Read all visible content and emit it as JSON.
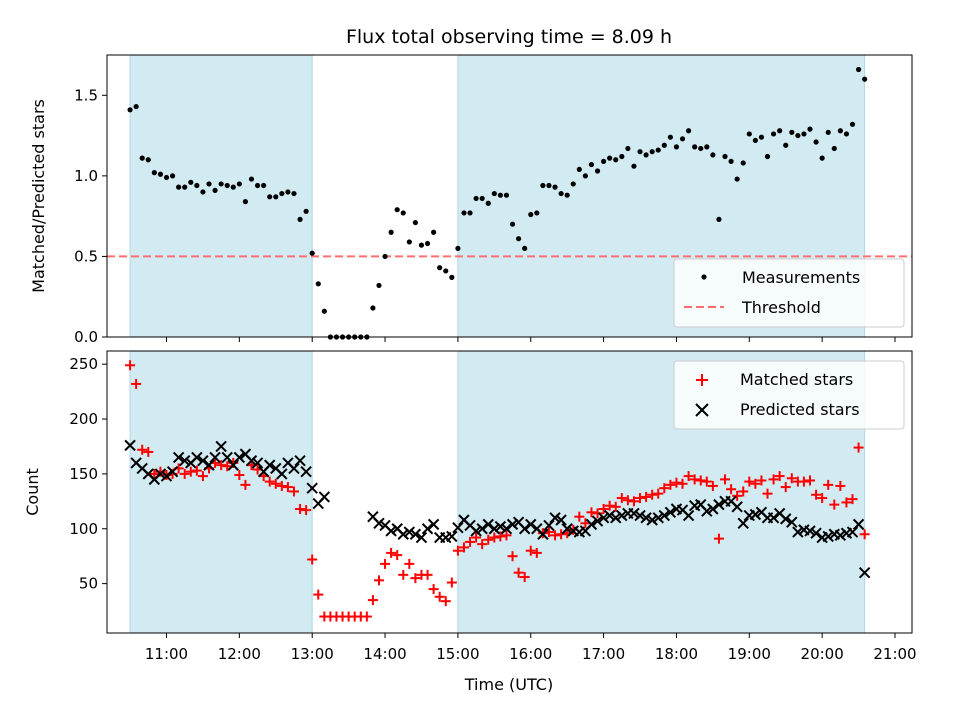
{
  "title": "Flux total observing time = 8.09 h",
  "xlabel": "Time (UTC)",
  "x_ticks": [
    "11:00",
    "12:00",
    "13:00",
    "14:00",
    "15:00",
    "16:00",
    "17:00",
    "18:00",
    "19:00",
    "20:00",
    "21:00"
  ],
  "colors": {
    "band": "#add8e6",
    "threshold": "#ff6f6f",
    "matched": "#ff0000",
    "predicted": "#000000",
    "measurements": "#000000"
  },
  "chart_data": [
    {
      "type": "scatter",
      "ylabel": "Matched/Predicted stars",
      "ylim": [
        0,
        1.75
      ],
      "y_ticks": [
        "0.0",
        "0.5",
        "1.0",
        "1.5"
      ],
      "xlim": [
        "10:11",
        "21:14"
      ],
      "shaded_intervals": [
        [
          "10:30",
          "13:00"
        ],
        [
          "15:00",
          "20:35"
        ]
      ],
      "threshold": 0.5,
      "legend": {
        "placement": "lower-right",
        "entries": [
          "Measurements",
          "Threshold"
        ]
      },
      "series": [
        {
          "name": "Measurements",
          "x": [
            "10:30",
            "10:35",
            "10:40",
            "10:45",
            "10:50",
            "10:55",
            "11:00",
            "11:05",
            "11:10",
            "11:15",
            "11:20",
            "11:25",
            "11:30",
            "11:35",
            "11:40",
            "11:45",
            "11:50",
            "11:55",
            "12:00",
            "12:05",
            "12:10",
            "12:15",
            "12:20",
            "12:25",
            "12:30",
            "12:35",
            "12:40",
            "12:45",
            "12:50",
            "12:55",
            "13:00",
            "13:05",
            "13:10",
            "13:15",
            "13:20",
            "13:25",
            "13:30",
            "13:35",
            "13:40",
            "13:45",
            "13:50",
            "13:55",
            "14:00",
            "14:05",
            "14:10",
            "14:15",
            "14:20",
            "14:25",
            "14:30",
            "14:35",
            "14:40",
            "14:45",
            "14:50",
            "14:55",
            "15:00",
            "15:05",
            "15:10",
            "15:15",
            "15:20",
            "15:25",
            "15:30",
            "15:35",
            "15:40",
            "15:45",
            "15:50",
            "15:55",
            "16:00",
            "16:05",
            "16:10",
            "16:15",
            "16:20",
            "16:25",
            "16:30",
            "16:35",
            "16:40",
            "16:45",
            "16:50",
            "16:55",
            "17:00",
            "17:05",
            "17:10",
            "17:15",
            "17:20",
            "17:25",
            "17:30",
            "17:35",
            "17:40",
            "17:45",
            "17:50",
            "17:55",
            "18:00",
            "18:05",
            "18:10",
            "18:15",
            "18:20",
            "18:25",
            "18:30",
            "18:35",
            "18:40",
            "18:45",
            "18:50",
            "18:55",
            "19:00",
            "19:05",
            "19:10",
            "19:15",
            "19:20",
            "19:25",
            "19:30",
            "19:35",
            "19:40",
            "19:45",
            "19:50",
            "19:55",
            "20:00",
            "20:05",
            "20:10",
            "20:15",
            "20:20",
            "20:25",
            "20:30",
            "20:35"
          ],
          "y": [
            1.41,
            1.43,
            1.11,
            1.1,
            1.02,
            1.01,
            0.99,
            1.0,
            0.93,
            0.93,
            0.96,
            0.94,
            0.9,
            0.95,
            0.91,
            0.95,
            0.94,
            0.93,
            0.95,
            0.84,
            0.98,
            0.94,
            0.94,
            0.87,
            0.87,
            0.89,
            0.9,
            0.89,
            0.73,
            0.78,
            0.52,
            0.33,
            0.16,
            0.0,
            0.0,
            0.0,
            0.0,
            0.0,
            0.0,
            0.0,
            0.18,
            0.32,
            0.5,
            0.65,
            0.79,
            0.77,
            0.59,
            0.71,
            0.57,
            0.58,
            0.65,
            0.43,
            0.41,
            0.37,
            0.55,
            0.77,
            0.77,
            0.86,
            0.86,
            0.83,
            0.89,
            0.88,
            0.88,
            0.7,
            0.61,
            0.55,
            0.76,
            0.77,
            0.94,
            0.94,
            0.93,
            0.89,
            0.88,
            0.95,
            1.04,
            1.0,
            1.07,
            1.03,
            1.09,
            1.11,
            1.1,
            1.12,
            1.17,
            1.06,
            1.15,
            1.13,
            1.15,
            1.16,
            1.19,
            1.24,
            1.18,
            1.23,
            1.28,
            1.18,
            1.17,
            1.18,
            1.13,
            0.73,
            1.12,
            1.09,
            0.98,
            1.08,
            1.26,
            1.22,
            1.24,
            1.12,
            1.26,
            1.28,
            1.19,
            1.27,
            1.25,
            1.26,
            1.29,
            1.21,
            1.11,
            1.27,
            1.17,
            1.28,
            1.26,
            1.32,
            1.66,
            1.6
          ]
        }
      ]
    },
    {
      "type": "scatter",
      "ylabel": "Count",
      "ylim": [
        5,
        262
      ],
      "y_ticks": [
        "50",
        "100",
        "150",
        "200",
        "250"
      ],
      "xlim": [
        "10:11",
        "21:14"
      ],
      "shaded_intervals": [
        [
          "10:30",
          "13:00"
        ],
        [
          "15:00",
          "20:35"
        ]
      ],
      "legend": {
        "placement": "upper-right",
        "entries": [
          "Matched stars",
          "Predicted stars"
        ]
      },
      "x": [
        "10:30",
        "10:35",
        "10:40",
        "10:45",
        "10:50",
        "10:55",
        "11:00",
        "11:05",
        "11:10",
        "11:15",
        "11:20",
        "11:25",
        "11:30",
        "11:35",
        "11:40",
        "11:45",
        "11:50",
        "11:55",
        "12:00",
        "12:05",
        "12:10",
        "12:15",
        "12:20",
        "12:25",
        "12:30",
        "12:35",
        "12:40",
        "12:45",
        "12:50",
        "12:55",
        "13:00",
        "13:05",
        "13:10",
        "13:15",
        "13:20",
        "13:25",
        "13:30",
        "13:35",
        "13:40",
        "13:45",
        "13:50",
        "13:55",
        "14:00",
        "14:05",
        "14:10",
        "14:15",
        "14:20",
        "14:25",
        "14:30",
        "14:35",
        "14:40",
        "14:45",
        "14:50",
        "14:55",
        "15:00",
        "15:05",
        "15:10",
        "15:15",
        "15:20",
        "15:25",
        "15:30",
        "15:35",
        "15:40",
        "15:45",
        "15:50",
        "15:55",
        "16:00",
        "16:05",
        "16:10",
        "16:15",
        "16:20",
        "16:25",
        "16:30",
        "16:35",
        "16:40",
        "16:45",
        "16:50",
        "16:55",
        "17:00",
        "17:05",
        "17:10",
        "17:15",
        "17:20",
        "17:25",
        "17:30",
        "17:35",
        "17:40",
        "17:45",
        "17:50",
        "17:55",
        "18:00",
        "18:05",
        "18:10",
        "18:15",
        "18:20",
        "18:25",
        "18:30",
        "18:35",
        "18:40",
        "18:45",
        "18:50",
        "18:55",
        "19:00",
        "19:05",
        "19:10",
        "19:15",
        "19:20",
        "19:25",
        "19:30",
        "19:35",
        "19:40",
        "19:45",
        "19:50",
        "19:55",
        "20:00",
        "20:05",
        "20:10",
        "20:15",
        "20:20",
        "20:25",
        "20:30",
        "20:35"
      ],
      "series": [
        {
          "name": "Matched stars",
          "y": [
            249,
            232,
            172,
            170,
            150,
            152,
            149,
            150,
            155,
            150,
            152,
            153,
            148,
            155,
            160,
            158,
            157,
            160,
            149,
            140,
            158,
            154,
            148,
            143,
            141,
            139,
            138,
            134,
            118,
            117,
            72,
            40,
            20,
            20,
            20,
            20,
            20,
            20,
            20,
            20,
            35,
            53,
            68,
            78,
            76,
            58,
            68,
            55,
            58,
            58,
            45,
            38,
            34,
            51,
            80,
            83,
            88,
            92,
            86,
            90,
            92,
            93,
            94,
            75,
            60,
            56,
            80,
            78,
            96,
            97,
            94,
            95,
            96,
            99,
            111,
            105,
            115,
            114,
            118,
            121,
            120,
            128,
            126,
            125,
            128,
            129,
            131,
            132,
            137,
            140,
            142,
            141,
            148,
            145,
            144,
            143,
            139,
            91,
            145,
            136,
            130,
            134,
            143,
            141,
            144,
            132,
            145,
            148,
            138,
            146,
            143,
            143,
            144,
            131,
            128,
            140,
            122,
            139,
            124,
            127,
            174,
            95
          ]
        },
        {
          "name": "Predicted stars",
          "y": [
            176,
            160,
            155,
            150,
            145,
            150,
            148,
            152,
            165,
            162,
            160,
            165,
            162,
            158,
            165,
            175,
            165,
            158,
            165,
            168,
            162,
            160,
            152,
            158,
            155,
            150,
            160,
            155,
            162,
            152,
            137,
            123,
            129,
            null,
            null,
            null,
            null,
            null,
            null,
            null,
            111,
            105,
            103,
            98,
            100,
            95,
            97,
            95,
            92,
            100,
            104,
            92,
            92,
            93,
            101,
            108,
            103,
            98,
            100,
            104,
            100,
            102,
            100,
            104,
            106,
            100,
            104,
            100,
            95,
            103,
            110,
            108,
            100,
            98,
            97,
            98,
            104,
            107,
            110,
            112,
            110,
            112,
            114,
            114,
            112,
            110,
            108,
            110,
            112,
            115,
            118,
            117,
            112,
            121,
            122,
            116,
            118,
            122,
            125,
            125,
            120,
            105,
            112,
            113,
            115,
            110,
            110,
            114,
            109,
            106,
            97,
            99,
            98,
            96,
            92,
            93,
            95,
            94,
            96,
            97,
            104,
            60
          ]
        }
      ]
    }
  ]
}
